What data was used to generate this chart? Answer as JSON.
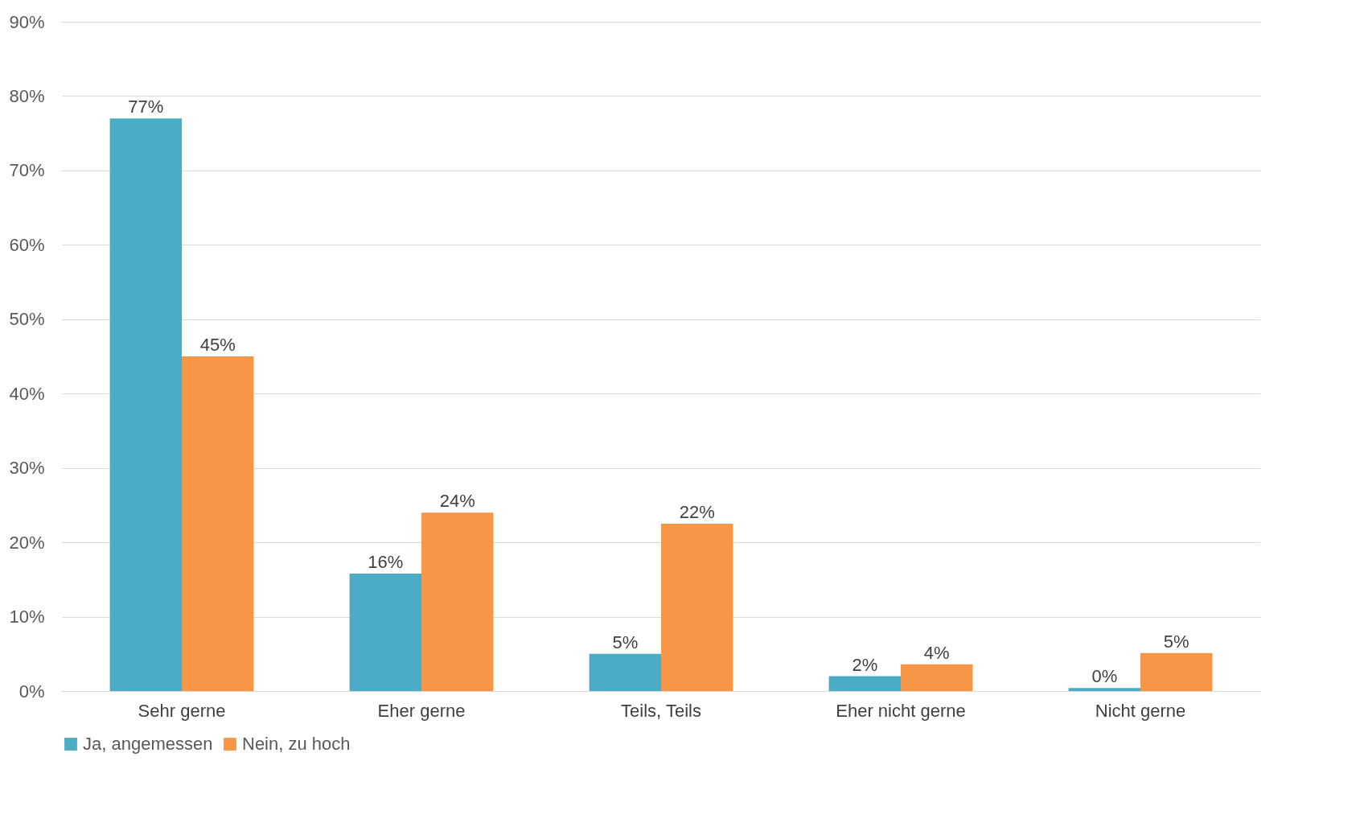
{
  "chart_data": {
    "type": "bar",
    "categories": [
      "Sehr gerne",
      "Eher gerne",
      "Teils, Teils",
      "Eher nicht gerne",
      "Nicht gerne"
    ],
    "series": [
      {
        "name": "Ja, angemessen",
        "color": "#4bacc6",
        "values": [
          77,
          15.8,
          5,
          2,
          0.4
        ],
        "value_labels": [
          "77%",
          "16%",
          "5%",
          "2%",
          "0%"
        ]
      },
      {
        "name": "Nein, zu hoch",
        "color": "#f79646",
        "values": [
          45,
          24,
          22.5,
          3.6,
          5.1
        ],
        "value_labels": [
          "45%",
          "24%",
          "22%",
          "4%",
          "5%"
        ]
      }
    ],
    "ylim": [
      0,
      90
    ],
    "yticks": [
      {
        "value": 0,
        "label": "0%"
      },
      {
        "value": 10,
        "label": "10%"
      },
      {
        "value": 20,
        "label": "20%"
      },
      {
        "value": 30,
        "label": "30%"
      },
      {
        "value": 40,
        "label": "40%"
      },
      {
        "value": 50,
        "label": "50%"
      },
      {
        "value": 60,
        "label": "60%"
      },
      {
        "value": 70,
        "label": "70%"
      },
      {
        "value": 80,
        "label": "80%"
      },
      {
        "value": 90,
        "label": "90%"
      }
    ],
    "grid": "y",
    "legend": "bottom"
  }
}
